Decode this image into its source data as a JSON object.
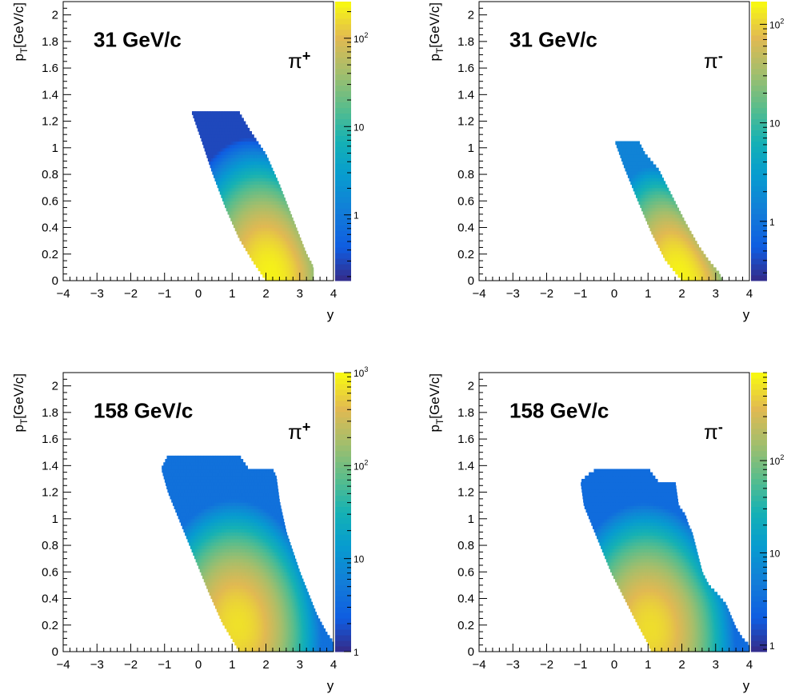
{
  "chart_data": [
    {
      "type": "heatmap",
      "title": "31 GeV/c",
      "particle": "π+",
      "particle_base": "π",
      "particle_sign": "+",
      "xlabel": "y",
      "ylabel": "p_T[GeV/c]",
      "ylabel_main": "p",
      "ylabel_sub": "T",
      "ylabel_tail": "[GeV/c]",
      "xlim": [
        -4,
        4
      ],
      "ylim": [
        0,
        2.1
      ],
      "x_ticks": [
        "−4",
        "−3",
        "−2",
        "−1",
        "0",
        "1",
        "2",
        "3",
        "4"
      ],
      "y_ticks": [
        "0",
        "0.2",
        "0.4",
        "0.6",
        "0.8",
        "1",
        "1.2",
        "1.4",
        "1.6",
        "1.8",
        "2"
      ],
      "colorbar": {
        "scale": "log",
        "range": [
          0.18,
          260
        ],
        "ticks": [
          {
            "value": 1,
            "label": "1"
          },
          {
            "value": 10,
            "label": "10"
          },
          {
            "value": 100,
            "label": "10",
            "exp": "2"
          }
        ]
      },
      "region": {
        "top_edge": [
          [
            -0.2,
            1.27
          ],
          [
            1.2,
            1.27
          ],
          [
            1.5,
            1.14
          ],
          [
            2.0,
            0.95
          ],
          [
            2.4,
            0.72
          ],
          [
            2.8,
            0.46
          ],
          [
            3.0,
            0.33
          ],
          [
            3.2,
            0.2
          ],
          [
            3.35,
            0.13
          ],
          [
            3.4,
            0.1
          ],
          [
            3.4,
            0.0
          ]
        ],
        "left_edge": [
          [
            -0.2,
            1.27
          ],
          [
            0.1,
            1.05
          ],
          [
            0.4,
            0.82
          ],
          [
            0.8,
            0.55
          ],
          [
            1.2,
            0.32
          ],
          [
            1.6,
            0.15
          ],
          [
            2.0,
            0.0
          ]
        ],
        "peak": [
          2.2,
          0.07
        ],
        "peak_value": 230,
        "edge_value": 0.3
      }
    },
    {
      "type": "heatmap",
      "title": "31 GeV/c",
      "particle": "π-",
      "particle_base": "π",
      "particle_sign": "-",
      "xlabel": "y",
      "ylabel": "p_T[GeV/c]",
      "ylabel_main": "p",
      "ylabel_sub": "T",
      "ylabel_tail": "[GeV/c]",
      "xlim": [
        -4,
        4
      ],
      "ylim": [
        0,
        2.1
      ],
      "x_ticks": [
        "−4",
        "−3",
        "−2",
        "−1",
        "0",
        "1",
        "2",
        "3",
        "4"
      ],
      "y_ticks": [
        "0",
        "0.2",
        "0.4",
        "0.6",
        "0.8",
        "1",
        "1.2",
        "1.4",
        "1.6",
        "1.8",
        "2"
      ],
      "colorbar": {
        "scale": "log",
        "range": [
          0.25,
          170
        ],
        "ticks": [
          {
            "value": 1,
            "label": "1"
          },
          {
            "value": 10,
            "label": "10"
          },
          {
            "value": 100,
            "label": "10",
            "exp": "2"
          }
        ]
      },
      "region": {
        "top_edge": [
          [
            0.0,
            1.06
          ],
          [
            0.7,
            1.06
          ],
          [
            0.9,
            0.96
          ],
          [
            1.3,
            0.84
          ],
          [
            1.7,
            0.64
          ],
          [
            2.1,
            0.44
          ],
          [
            2.5,
            0.26
          ],
          [
            2.8,
            0.15
          ],
          [
            3.1,
            0.06
          ],
          [
            3.2,
            0.0
          ]
        ],
        "left_edge": [
          [
            0.0,
            1.06
          ],
          [
            0.3,
            0.85
          ],
          [
            0.7,
            0.6
          ],
          [
            1.1,
            0.36
          ],
          [
            1.5,
            0.16
          ],
          [
            2.0,
            0.0
          ]
        ],
        "peak": [
          2.0,
          0.07
        ],
        "peak_value": 150,
        "edge_value": 1.5
      }
    },
    {
      "type": "heatmap",
      "title": "158 GeV/c",
      "particle": "π+",
      "particle_base": "π",
      "particle_sign": "+",
      "xlabel": "y",
      "ylabel": "p_T[GeV/c]",
      "ylabel_main": "p",
      "ylabel_sub": "T",
      "ylabel_tail": "[GeV/c]",
      "xlim": [
        -4,
        4
      ],
      "ylim": [
        0,
        2.1
      ],
      "x_ticks": [
        "−4",
        "−3",
        "−2",
        "−1",
        "0",
        "1",
        "2",
        "3",
        "4"
      ],
      "y_ticks": [
        "0",
        "0.2",
        "0.4",
        "0.6",
        "0.8",
        "1",
        "1.2",
        "1.4",
        "1.6",
        "1.8",
        "2"
      ],
      "colorbar": {
        "scale": "log",
        "range": [
          1,
          1000
        ],
        "ticks": [
          {
            "value": 1,
            "label": "1"
          },
          {
            "value": 10,
            "label": "10"
          },
          {
            "value": 100,
            "label": "10",
            "exp": "2"
          },
          {
            "value": 1000,
            "label": "10",
            "exp": "3"
          }
        ]
      },
      "region": {
        "top_edge": [
          [
            -0.9,
            1.48
          ],
          [
            1.2,
            1.48
          ],
          [
            1.5,
            1.37
          ],
          [
            2.2,
            1.37
          ],
          [
            2.3,
            1.32
          ],
          [
            2.4,
            1.13
          ],
          [
            2.6,
            0.9
          ],
          [
            3.0,
            0.6
          ],
          [
            3.5,
            0.28
          ],
          [
            3.8,
            0.14
          ],
          [
            4.0,
            0.07
          ],
          [
            4.0,
            0.0
          ]
        ],
        "left_edge": [
          [
            -0.9,
            1.48
          ],
          [
            -1.1,
            1.38
          ],
          [
            -0.9,
            1.2
          ],
          [
            -0.5,
            0.95
          ],
          [
            -0.1,
            0.7
          ],
          [
            0.3,
            0.45
          ],
          [
            0.7,
            0.22
          ],
          [
            1.1,
            0.05
          ],
          [
            1.2,
            0.0
          ]
        ],
        "peak": [
          1.2,
          0.21
        ],
        "peak_value": 700,
        "edge_value": 4
      }
    },
    {
      "type": "heatmap",
      "title": "158 GeV/c",
      "particle": "π-",
      "particle_base": "π",
      "particle_sign": "-",
      "xlabel": "y",
      "ylabel": "p_T[GeV/c]",
      "ylabel_main": "p",
      "ylabel_sub": "T",
      "ylabel_tail": "[GeV/c]",
      "xlim": [
        -4,
        4
      ],
      "ylim": [
        0,
        2.1
      ],
      "x_ticks": [
        "−4",
        "−3",
        "−2",
        "−1",
        "0",
        "1",
        "2",
        "3",
        "4"
      ],
      "y_ticks": [
        "0",
        "0.2",
        "0.4",
        "0.6",
        "0.8",
        "1",
        "1.2",
        "1.4",
        "1.6",
        "1.8",
        "2"
      ],
      "colorbar": {
        "scale": "log",
        "range": [
          0.85,
          900
        ],
        "ticks": [
          {
            "value": 1,
            "label": "1"
          },
          {
            "value": 10,
            "label": "10"
          },
          {
            "value": 100,
            "label": "10",
            "exp": "2"
          }
        ]
      },
      "region": {
        "top_edge": [
          [
            -0.5,
            1.38
          ],
          [
            1.0,
            1.38
          ],
          [
            1.3,
            1.28
          ],
          [
            1.8,
            1.28
          ],
          [
            1.9,
            1.1
          ],
          [
            2.1,
            1.03
          ],
          [
            2.2,
            0.95
          ],
          [
            2.3,
            0.9
          ],
          [
            2.4,
            0.8
          ],
          [
            2.6,
            0.6
          ],
          [
            2.8,
            0.5
          ],
          [
            3.0,
            0.45
          ],
          [
            3.3,
            0.36
          ],
          [
            3.6,
            0.18
          ],
          [
            3.8,
            0.1
          ],
          [
            4.0,
            0.05
          ],
          [
            4.0,
            0.0
          ]
        ],
        "left_edge": [
          [
            -0.5,
            1.38
          ],
          [
            -0.8,
            1.33
          ],
          [
            -1.0,
            1.28
          ],
          [
            -0.9,
            1.1
          ],
          [
            -0.5,
            0.85
          ],
          [
            -0.1,
            0.6
          ],
          [
            0.3,
            0.4
          ],
          [
            0.7,
            0.2
          ],
          [
            1.0,
            0.06
          ],
          [
            1.1,
            0.0
          ]
        ],
        "peak": [
          1.1,
          0.18
        ],
        "peak_value": 600,
        "edge_value": 3
      }
    }
  ]
}
